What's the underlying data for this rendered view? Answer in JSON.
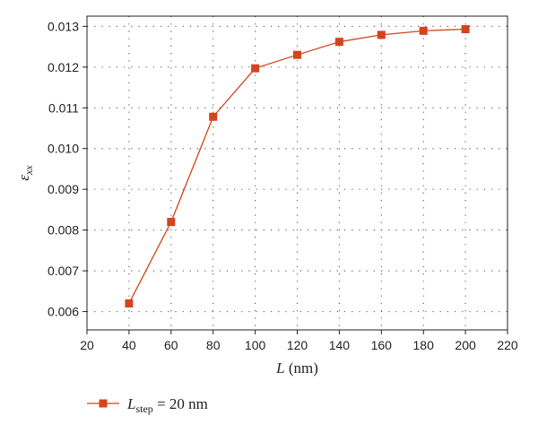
{
  "chart_data": {
    "type": "line",
    "x": [
      40,
      60,
      80,
      100,
      120,
      140,
      160,
      180,
      200
    ],
    "series": [
      {
        "name_parts": {
          "main": "L",
          "sub": "step",
          "rest": " = 20 nm"
        },
        "values": [
          0.0062,
          0.0082,
          0.01078,
          0.01197,
          0.0123,
          0.01262,
          0.01279,
          0.01289,
          0.01293
        ],
        "color": "#d2451e",
        "marker": "square"
      }
    ],
    "xlabel_parts": {
      "main": "L",
      "rest": " (nm)"
    },
    "ylabel_parts": {
      "main": "ε",
      "sub": "xx"
    },
    "xlim": [
      20,
      220
    ],
    "ylim": [
      0.00555,
      0.01325
    ],
    "xticks": [
      20,
      40,
      60,
      80,
      100,
      120,
      140,
      160,
      180,
      200,
      220
    ],
    "xtick_labels": [
      "20",
      "40",
      "60",
      "80",
      "100",
      "120",
      "140",
      "160",
      "180",
      "200",
      "220"
    ],
    "yticks": [
      0.006,
      0.007,
      0.008,
      0.009,
      0.01,
      0.011,
      0.012,
      0.013
    ],
    "ytick_labels": [
      "0.006",
      "0.007",
      "0.008",
      "0.009",
      "0.010",
      "0.011",
      "0.012",
      "0.013"
    ],
    "grid": true,
    "legend_position": "bottom-left"
  }
}
